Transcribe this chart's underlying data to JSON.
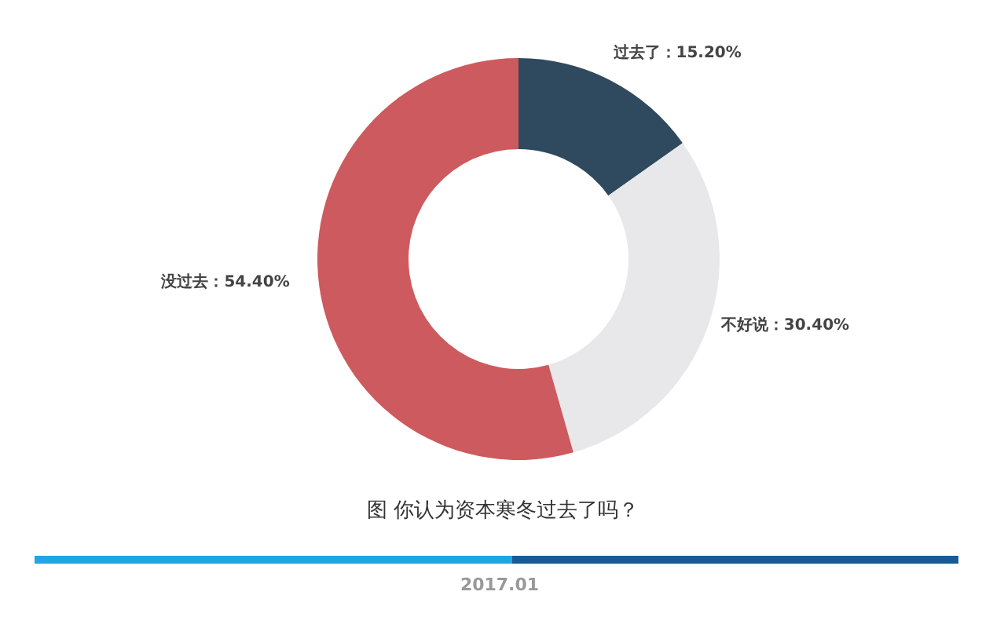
{
  "chart_data": {
    "type": "donut",
    "title": "图 你认为资本寒冬过去了吗？",
    "categories": [
      "过去了",
      "不好说",
      "没过去"
    ],
    "values": [
      15.2,
      30.4,
      54.4
    ],
    "colors": [
      "#2f4a5f",
      "#e8e8ea",
      "#cd5a5e"
    ],
    "value_labels": [
      "15.20%",
      "30.40%",
      "54.40%"
    ],
    "annotations": [
      "2017.01"
    ]
  }
}
